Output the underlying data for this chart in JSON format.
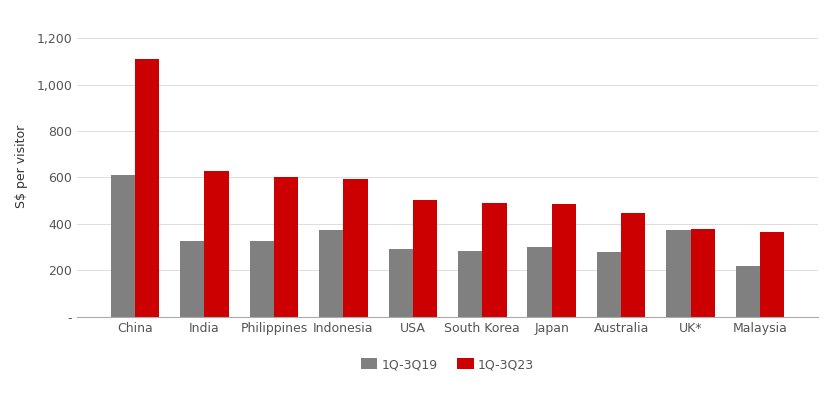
{
  "categories": [
    "China",
    "India",
    "Philippines",
    "Indonesia",
    "USA",
    "South Korea",
    "Japan",
    "Australia",
    "UK*",
    "Malaysia"
  ],
  "values_2019": [
    610,
    325,
    325,
    375,
    290,
    285,
    300,
    280,
    375,
    220
  ],
  "values_2023": [
    1110,
    630,
    600,
    595,
    505,
    490,
    485,
    445,
    380,
    365
  ],
  "color_2019": "#808080",
  "color_2023": "#cc0000",
  "ylabel": "S$ per visitor",
  "ylim": [
    0,
    1300
  ],
  "yticks": [
    0,
    200,
    400,
    600,
    800,
    1000,
    1200
  ],
  "ytick_labels": [
    "-",
    "200",
    "400",
    "600",
    "800",
    "1,000",
    "1,200"
  ],
  "legend_labels": [
    "1Q-3Q19",
    "1Q-3Q23"
  ],
  "bar_width": 0.35,
  "background_color": "#ffffff"
}
